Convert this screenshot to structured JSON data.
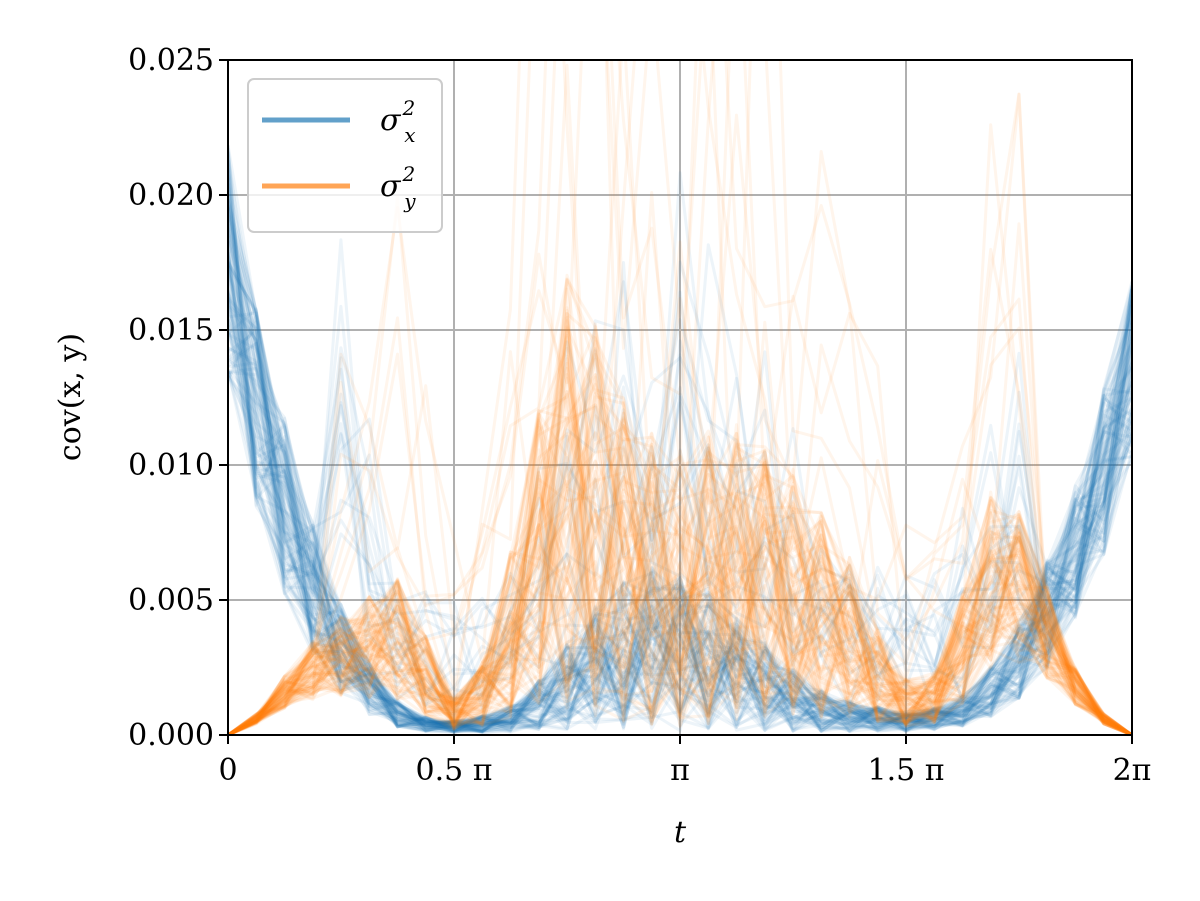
{
  "chart_data": {
    "type": "line",
    "title": "",
    "xlabel": "t",
    "ylabel": "cov(x, y)",
    "xlim": [
      0,
      6.283185307
    ],
    "ylim": [
      0,
      0.025
    ],
    "grid": true,
    "legend_position": "top-left",
    "x_ticks": [
      {
        "value": 0,
        "label": "0"
      },
      {
        "value": 1.570796327,
        "label": "0.5 π"
      },
      {
        "value": 3.141592654,
        "label": "π"
      },
      {
        "value": 4.71238898,
        "label": "1.5 π"
      },
      {
        "value": 6.283185307,
        "label": "2π"
      }
    ],
    "y_ticks": [
      {
        "value": 0.0,
        "label": "0.000"
      },
      {
        "value": 0.005,
        "label": "0.005"
      },
      {
        "value": 0.01,
        "label": "0.010"
      },
      {
        "value": 0.015,
        "label": "0.015"
      },
      {
        "value": 0.02,
        "label": "0.020"
      },
      {
        "value": 0.025,
        "label": "0.025"
      }
    ],
    "ensemble_size": 100,
    "series": [
      {
        "name": "σ_x^2",
        "legend_label": "σ",
        "legend_sup": "2",
        "legend_sub": "x",
        "color": "#1f77b4",
        "x": [
          0,
          0.196,
          0.393,
          0.589,
          0.785,
          0.982,
          1.178,
          1.374,
          1.571,
          1.767,
          1.963,
          2.16,
          2.356,
          2.553,
          2.749,
          2.945,
          3.142,
          3.338,
          3.534,
          3.731,
          3.927,
          4.123,
          4.32,
          4.516,
          4.712,
          4.909,
          5.105,
          5.301,
          5.498,
          5.694,
          5.89,
          6.087,
          6.283
        ],
        "values": [
          0.0175,
          0.012,
          0.0085,
          0.0055,
          0.0032,
          0.0017,
          0.0008,
          0.0004,
          0.0003,
          0.0004,
          0.0006,
          0.0011,
          0.0018,
          0.0025,
          0.003,
          0.0032,
          0.0031,
          0.0028,
          0.0023,
          0.0018,
          0.0013,
          0.0009,
          0.0007,
          0.0006,
          0.0005,
          0.0006,
          0.0009,
          0.0016,
          0.0028,
          0.0045,
          0.0068,
          0.0098,
          0.0135
        ]
      },
      {
        "name": "σ_y^2",
        "legend_label": "σ",
        "legend_sup": "2",
        "legend_sub": "y",
        "color": "#ff7f0e",
        "x": [
          0,
          0.196,
          0.393,
          0.589,
          0.785,
          0.982,
          1.178,
          1.374,
          1.571,
          1.767,
          1.963,
          2.16,
          2.356,
          2.553,
          2.749,
          2.945,
          3.142,
          3.338,
          3.534,
          3.731,
          3.927,
          4.123,
          4.32,
          4.516,
          4.712,
          4.909,
          5.105,
          5.301,
          5.498,
          5.694,
          5.89,
          6.087,
          6.283
        ],
        "values": [
          0.0,
          0.0006,
          0.0016,
          0.0024,
          0.0029,
          0.0033,
          0.0036,
          0.0022,
          0.0008,
          0.0015,
          0.0038,
          0.0065,
          0.009,
          0.008,
          0.0065,
          0.0058,
          0.0055,
          0.0058,
          0.006,
          0.0058,
          0.0052,
          0.0045,
          0.0036,
          0.0022,
          0.0012,
          0.0014,
          0.0032,
          0.0058,
          0.0055,
          0.0038,
          0.0018,
          0.0006,
          0.0
        ]
      }
    ]
  }
}
